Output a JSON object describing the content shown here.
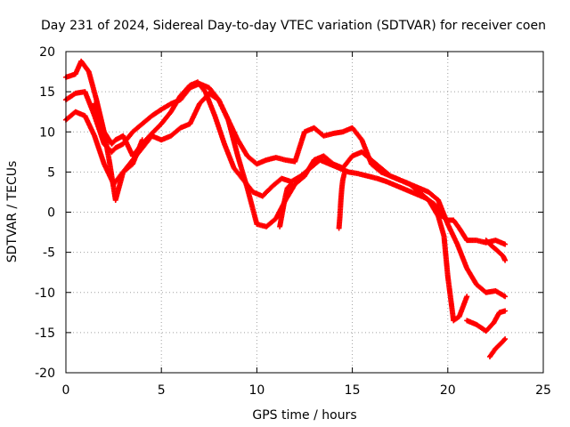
{
  "chart_data": {
    "type": "scatter",
    "title": "Day 231 of 2024, Sidereal Day-to-day VTEC variation (SDTVAR) for receiver coen",
    "xlabel": "GPS time / hours",
    "ylabel": "SDTVAR / TECUs",
    "xlim": [
      0,
      25
    ],
    "ylim": [
      -20,
      20
    ],
    "xticks": [
      "0",
      "5",
      "10",
      "15",
      "20",
      "25"
    ],
    "yticks": [
      "20",
      "15",
      "10",
      "5",
      "0",
      "-5",
      "-10",
      "-15",
      "-20"
    ],
    "grid": true,
    "legend": "none",
    "marker": "+",
    "series": [
      {
        "name": "trace-1",
        "color": "#ff0000",
        "x": [
          0.0,
          0.5,
          0.8,
          1.2,
          1.6,
          2.0,
          2.4,
          2.6,
          3.0,
          3.5,
          4.0,
          4.5,
          5.0,
          5.5,
          6.0,
          6.5,
          6.9,
          7.3,
          7.8,
          8.3,
          8.8,
          9.3,
          9.8,
          10.3,
          10.8,
          11.3,
          11.8,
          12.3,
          12.8,
          13.3,
          13.8,
          14.3,
          14.8,
          15.3,
          15.8,
          16.3,
          16.8,
          17.3,
          17.8,
          18.3,
          18.8,
          19.3,
          19.7,
          20.0,
          20.3,
          20.6,
          21.0,
          21.5,
          22.0,
          22.5,
          23.0
        ],
        "y": [
          16.8,
          17.2,
          18.8,
          17.5,
          14.0,
          10.0,
          8.5,
          9.0,
          9.5,
          7.0,
          8.5,
          9.8,
          11.0,
          12.5,
          14.5,
          15.8,
          16.2,
          15.0,
          12.0,
          8.5,
          5.5,
          4.0,
          2.5,
          2.0,
          3.2,
          4.2,
          3.8,
          4.5,
          5.5,
          6.5,
          6.0,
          5.5,
          5.0,
          4.8,
          4.5,
          4.2,
          3.8,
          3.3,
          2.8,
          2.3,
          1.8,
          1.0,
          -0.5,
          -1.0,
          -1.0,
          -2.0,
          -3.5,
          -3.5,
          -3.8,
          -3.5,
          -4.0
        ]
      },
      {
        "name": "trace-2",
        "color": "#ff0000",
        "x": [
          0.0,
          0.5,
          1.0,
          1.5,
          2.0,
          2.4,
          2.6,
          3.0,
          3.5,
          4.0,
          4.5,
          5.0,
          5.5,
          6.0,
          6.5,
          7.0,
          7.5,
          8.0,
          8.5,
          9.0,
          9.5,
          10.0,
          10.5,
          11.0,
          11.5,
          12.0,
          12.5,
          13.0,
          13.5,
          14.0,
          14.5,
          15.0,
          15.5,
          16.0,
          16.5,
          17.0,
          17.5,
          18.0,
          18.5,
          19.0,
          19.5,
          20.0,
          20.5,
          21.0,
          21.5,
          22.0,
          22.5,
          23.0
        ],
        "y": [
          14.0,
          14.8,
          15.0,
          12.0,
          8.5,
          7.5,
          8.0,
          8.5,
          10.0,
          11.0,
          12.0,
          12.8,
          13.5,
          14.0,
          15.5,
          16.0,
          15.5,
          14.0,
          11.5,
          9.0,
          7.0,
          6.0,
          6.5,
          6.8,
          6.5,
          6.3,
          10.0,
          10.5,
          9.5,
          9.8,
          10.0,
          10.5,
          9.0,
          6.0,
          5.0,
          4.5,
          4.0,
          3.5,
          3.0,
          2.5,
          1.5,
          -1.5,
          -4.0,
          -7.0,
          -9.0,
          -10.0,
          -9.8,
          -10.5
        ]
      },
      {
        "name": "trace-3",
        "color": "#ff0000",
        "x": [
          0.0,
          0.5,
          1.0,
          1.5,
          2.0,
          2.5,
          3.0,
          3.5,
          4.0,
          4.5,
          5.0,
          5.5,
          6.0,
          6.5,
          7.0,
          7.5,
          8.0,
          8.5,
          9.0,
          9.5,
          10.0,
          10.5,
          11.0,
          11.5,
          12.0,
          12.5,
          13.0,
          13.5,
          14.0,
          14.5,
          15.0,
          15.5,
          16.0,
          16.5,
          17.0,
          17.5,
          18.0,
          18.5,
          19.0,
          19.5,
          19.8,
          20.0,
          20.3,
          20.6,
          21.0
        ],
        "y": [
          11.5,
          12.5,
          12.0,
          9.5,
          6.0,
          3.5,
          5.0,
          6.5,
          8.0,
          9.5,
          9.0,
          9.5,
          10.5,
          11.0,
          13.5,
          14.8,
          14.0,
          11.5,
          7.0,
          3.0,
          -1.5,
          -1.8,
          -0.8,
          1.5,
          3.5,
          4.5,
          6.5,
          7.0,
          6.0,
          5.5,
          7.0,
          7.5,
          6.5,
          5.5,
          4.5,
          4.0,
          3.5,
          2.5,
          1.5,
          -0.5,
          -3.0,
          -8.0,
          -13.5,
          -13.0,
          -10.5
        ]
      },
      {
        "name": "trace-4",
        "color": "#ff0000",
        "x": [
          1.5,
          2.0,
          2.3,
          2.6,
          3.0,
          3.5,
          4.0
        ],
        "y": [
          13.5,
          10.0,
          6.0,
          1.5,
          5.0,
          6.0,
          9.0
        ]
      },
      {
        "name": "trace-5",
        "color": "#ff0000",
        "x": [
          21.0,
          21.5,
          22.0,
          22.4,
          22.7,
          23.0
        ],
        "y": [
          -13.5,
          -14.0,
          -14.8,
          -13.8,
          -12.5,
          -12.3
        ]
      },
      {
        "name": "trace-6",
        "color": "#ff0000",
        "x": [
          22.2,
          22.5,
          22.8,
          23.0
        ],
        "y": [
          -18.0,
          -17.0,
          -16.3,
          -15.8
        ]
      },
      {
        "name": "trace-7",
        "color": "#ff0000",
        "x": [
          22.0,
          22.3,
          22.6,
          22.9,
          23.0
        ],
        "y": [
          -3.5,
          -4.2,
          -4.8,
          -5.5,
          -6.0
        ]
      },
      {
        "name": "trace-8",
        "color": "#ff0000",
        "x": [
          11.2,
          11.3,
          11.4,
          11.5,
          11.6,
          11.8
        ],
        "y": [
          -1.8,
          -0.5,
          0.8,
          2.0,
          3.0,
          3.5
        ]
      },
      {
        "name": "trace-9",
        "color": "#ff0000",
        "x": [
          14.3,
          14.35,
          14.4,
          14.45,
          14.5,
          14.6
        ],
        "y": [
          -2.0,
          -0.5,
          1.5,
          3.0,
          4.0,
          5.0
        ]
      }
    ]
  }
}
